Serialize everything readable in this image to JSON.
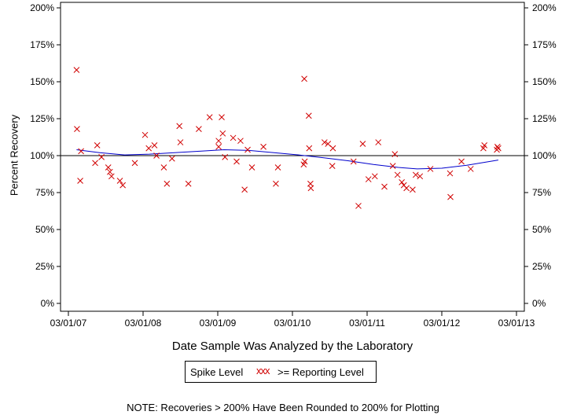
{
  "chart_data": {
    "type": "scatter",
    "xlabel": "Date Sample Was Analyzed by the Laboratory",
    "ylabel": "Percent Recovery",
    "x_ticks": [
      "03/01/07",
      "03/01/08",
      "03/01/09",
      "03/01/10",
      "03/01/11",
      "03/01/12",
      "03/01/13"
    ],
    "y_ticks": [
      "0%",
      "25%",
      "50%",
      "75%",
      "100%",
      "125%",
      "150%",
      "175%",
      "200%"
    ],
    "ylim": [
      0,
      200
    ],
    "reference_line": 100,
    "legend": {
      "series_label": "Spike Level",
      "marker": "xxx",
      "entry_label": ">= Reporting Level"
    },
    "note": "NOTE: Recoveries > 200% Have Been Rounded to 200% for Plotting",
    "colors": {
      "points": "#d00000",
      "trend": "#0000cc",
      "axes": "#000000"
    },
    "series": [
      {
        "name": ">= Reporting Level",
        "points": [
          [
            "2007-04-10",
            158
          ],
          [
            "2007-04-12",
            118
          ],
          [
            "2007-04-28",
            83
          ],
          [
            "2007-05-02",
            103
          ],
          [
            "2007-07-20",
            107
          ],
          [
            "2007-07-10",
            95
          ],
          [
            "2007-08-10",
            99
          ],
          [
            "2007-09-12",
            92
          ],
          [
            "2007-09-20",
            89
          ],
          [
            "2007-09-28",
            86
          ],
          [
            "2007-11-08",
            83
          ],
          [
            "2007-11-22",
            80
          ],
          [
            "2008-01-20",
            95
          ],
          [
            "2008-03-10",
            114
          ],
          [
            "2008-03-28",
            105
          ],
          [
            "2008-04-25",
            107
          ],
          [
            "2008-05-05",
            100
          ],
          [
            "2008-06-10",
            92
          ],
          [
            "2008-06-25",
            81
          ],
          [
            "2008-07-20",
            98
          ],
          [
            "2008-08-25",
            120
          ],
          [
            "2008-08-30",
            109
          ],
          [
            "2008-10-08",
            81
          ],
          [
            "2008-11-28",
            118
          ],
          [
            "2009-01-20",
            126
          ],
          [
            "2009-03-05",
            106
          ],
          [
            "2009-03-05",
            110
          ],
          [
            "2009-03-20",
            126
          ],
          [
            "2009-03-25",
            115
          ],
          [
            "2009-04-05",
            99
          ],
          [
            "2009-05-15",
            112
          ],
          [
            "2009-06-01",
            96
          ],
          [
            "2009-06-20",
            110
          ],
          [
            "2009-07-10",
            77
          ],
          [
            "2009-07-25",
            104
          ],
          [
            "2009-08-15",
            92
          ],
          [
            "2009-10-10",
            106
          ],
          [
            "2009-12-10",
            81
          ],
          [
            "2009-12-20",
            92
          ],
          [
            "2010-04-28",
            152
          ],
          [
            "2010-04-25",
            94
          ],
          [
            "2010-04-30",
            96
          ],
          [
            "2010-05-20",
            127
          ],
          [
            "2010-05-22",
            105
          ],
          [
            "2010-05-28",
            81
          ],
          [
            "2010-05-30",
            78
          ],
          [
            "2010-08-05",
            109
          ],
          [
            "2010-08-22",
            108
          ],
          [
            "2010-09-15",
            105
          ],
          [
            "2010-09-12",
            93
          ],
          [
            "2010-12-25",
            96
          ],
          [
            "2011-01-18",
            66
          ],
          [
            "2011-02-08",
            108
          ],
          [
            "2011-03-08",
            84
          ],
          [
            "2011-04-08",
            86
          ],
          [
            "2011-04-25",
            109
          ],
          [
            "2011-05-25",
            79
          ],
          [
            "2011-07-05",
            93
          ],
          [
            "2011-07-15",
            101
          ],
          [
            "2011-07-28",
            87
          ],
          [
            "2011-08-18",
            82
          ],
          [
            "2011-08-28",
            80
          ],
          [
            "2011-09-10",
            78
          ],
          [
            "2011-10-10",
            77
          ],
          [
            "2011-10-25",
            87
          ],
          [
            "2011-11-15",
            86
          ],
          [
            "2012-01-05",
            91
          ],
          [
            "2012-04-10",
            88
          ],
          [
            "2012-04-12",
            72
          ],
          [
            "2012-06-05",
            96
          ],
          [
            "2012-07-20",
            91
          ],
          [
            "2012-09-20",
            105
          ],
          [
            "2012-09-25",
            107
          ],
          [
            "2012-11-25",
            104
          ],
          [
            "2012-11-28",
            106
          ],
          [
            "2012-12-02",
            105
          ]
        ]
      },
      {
        "name": "trend",
        "line": [
          [
            "2007-04-10",
            104
          ],
          [
            "2007-08-01",
            102
          ],
          [
            "2007-12-01",
            100.5
          ],
          [
            "2008-04-01",
            101
          ],
          [
            "2008-08-01",
            102
          ],
          [
            "2008-12-01",
            103
          ],
          [
            "2009-04-01",
            104
          ],
          [
            "2009-08-01",
            103.5
          ],
          [
            "2009-12-01",
            102
          ],
          [
            "2010-04-01",
            100.5
          ],
          [
            "2010-08-01",
            98.5
          ],
          [
            "2010-12-01",
            96.5
          ],
          [
            "2011-04-01",
            94
          ],
          [
            "2011-08-01",
            92
          ],
          [
            "2011-11-01",
            91
          ],
          [
            "2012-03-01",
            91.5
          ],
          [
            "2012-07-01",
            93.5
          ],
          [
            "2012-12-02",
            97
          ]
        ]
      }
    ]
  }
}
